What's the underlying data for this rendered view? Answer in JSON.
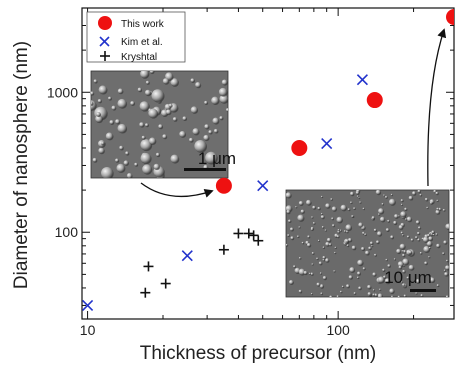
{
  "chart_data": {
    "type": "scatter",
    "xlabel": "Thickness of precursor (nm)",
    "ylabel": "Diameter of nanosphere (nm)",
    "x_scale": "log",
    "y_scale": "log",
    "xlim": [
      9.5,
      290
    ],
    "ylim": [
      24,
      4000
    ],
    "x_ticks": [
      {
        "value": 10,
        "label": "10"
      },
      {
        "value": 100,
        "label": "100"
      }
    ],
    "y_ticks": [
      {
        "value": 100,
        "label": "100"
      },
      {
        "value": 1000,
        "label": "1000"
      }
    ],
    "legend_position": "top-left",
    "series": [
      {
        "name": "This work",
        "marker": "circle",
        "color": "#ee1111",
        "points": [
          [
            35,
            215
          ],
          [
            70,
            400
          ],
          [
            140,
            880
          ],
          [
            290,
            3450
          ]
        ]
      },
      {
        "name": "Kim et al.",
        "marker": "x",
        "color": "#2233cc",
        "points": [
          [
            10,
            30
          ],
          [
            25,
            68
          ],
          [
            50,
            215
          ],
          [
            90,
            430
          ],
          [
            125,
            1230
          ]
        ]
      },
      {
        "name": "Kryshtal",
        "marker": "plus",
        "color": "#111111",
        "points": [
          [
            17,
            37
          ],
          [
            17.5,
            57
          ],
          [
            20.5,
            43
          ],
          [
            35,
            75
          ],
          [
            40,
            98
          ],
          [
            44,
            98
          ],
          [
            46,
            95
          ],
          [
            48,
            87
          ]
        ]
      }
    ],
    "insets": [
      {
        "scale_bar_label": "1 μm",
        "points_to_x": 35
      },
      {
        "scale_bar_label": "10 μm",
        "points_to_x": 290
      }
    ]
  },
  "colors": {
    "this_work": "#ee1111",
    "kim": "#2233cc",
    "kryshtal": "#111111"
  }
}
